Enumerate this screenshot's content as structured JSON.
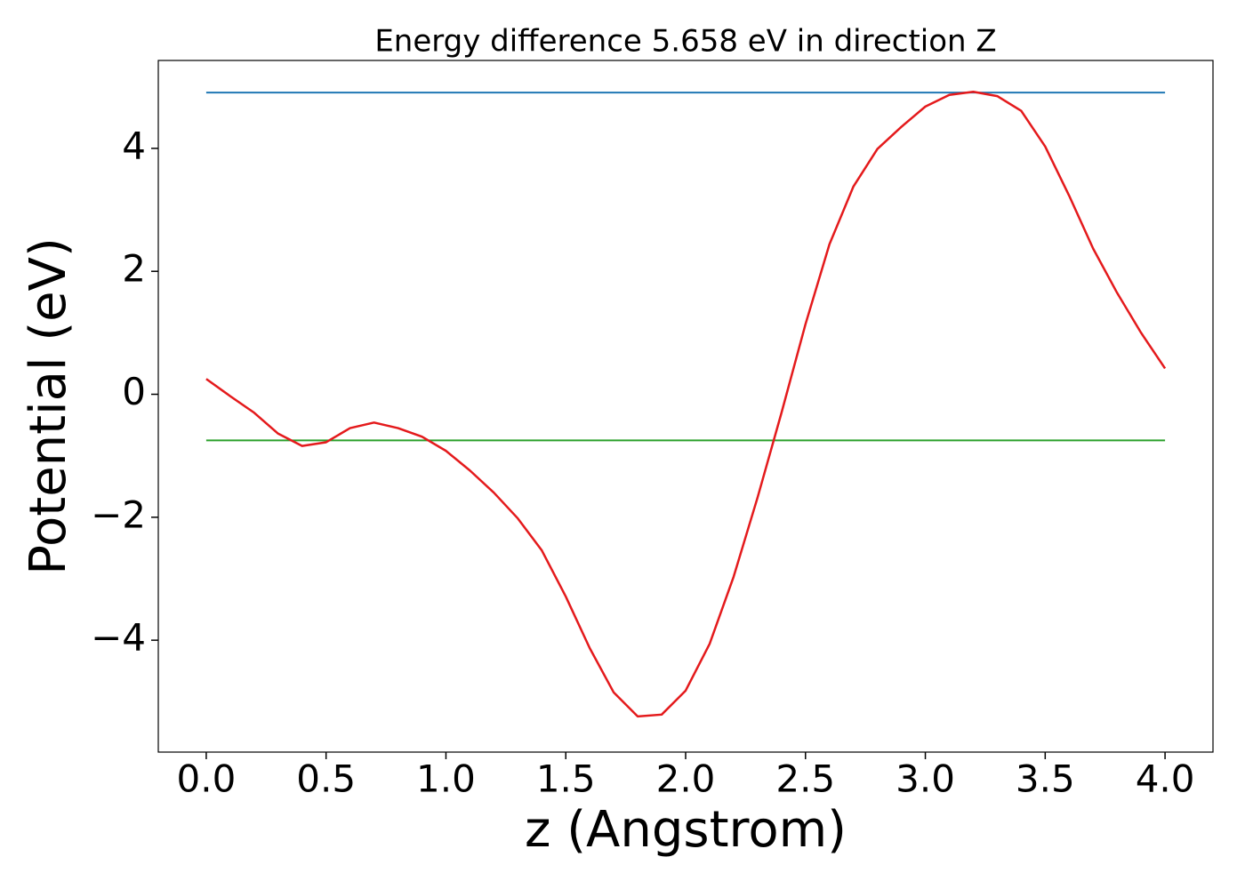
{
  "chart_data": {
    "type": "line",
    "title": "Energy difference 5.658 eV in direction Z",
    "xlabel": "z (Angstrom)",
    "ylabel": "Potential (eV)",
    "xlim": [
      -0.2,
      4.2
    ],
    "ylim": [
      -5.82,
      5.43
    ],
    "xticks": [
      {
        "value": 0,
        "label": "0.0"
      },
      {
        "value": 0.5,
        "label": "0.5"
      },
      {
        "value": 1,
        "label": "1.0"
      },
      {
        "value": 1.5,
        "label": "1.5"
      },
      {
        "value": 2,
        "label": "2.0"
      },
      {
        "value": 2.5,
        "label": "2.5"
      },
      {
        "value": 3,
        "label": "3.0"
      },
      {
        "value": 3.5,
        "label": "3.5"
      },
      {
        "value": 4,
        "label": "4.0"
      }
    ],
    "yticks": [
      {
        "value": -4,
        "label": "−4"
      },
      {
        "value": -2,
        "label": "−2"
      },
      0,
      2,
      4
    ],
    "series": [
      {
        "color": "#1f77b4",
        "x": [
          0,
          4
        ],
        "values": [
          4.908,
          4.908
        ]
      },
      {
        "color": "#2ca02c",
        "x": [
          0,
          4
        ],
        "values": [
          -0.75,
          -0.75
        ]
      },
      {
        "color": "#e41a1c",
        "x": [
          0,
          0.1,
          0.2,
          0.3,
          0.4,
          0.5,
          0.6,
          0.7,
          0.8,
          0.9,
          1.0,
          1.1,
          1.2,
          1.3,
          1.4,
          1.5,
          1.6,
          1.7,
          1.8,
          1.9,
          2.0,
          2.1,
          2.2,
          2.3,
          2.4,
          2.5,
          2.6,
          2.7,
          2.8,
          2.9,
          3.0,
          3.1,
          3.2,
          3.3,
          3.4,
          3.5,
          3.6,
          3.7,
          3.8,
          3.9,
          4.0
        ],
        "values": [
          0.25,
          -0.03,
          -0.3,
          -0.64,
          -0.84,
          -0.78,
          -0.55,
          -0.46,
          -0.55,
          -0.69,
          -0.92,
          -1.24,
          -1.6,
          -2.02,
          -2.54,
          -3.29,
          -4.13,
          -4.85,
          -5.24,
          -5.21,
          -4.82,
          -4.06,
          -2.97,
          -1.68,
          -0.3,
          1.14,
          2.44,
          3.38,
          3.99,
          4.35,
          4.68,
          4.87,
          4.92,
          4.85,
          4.61,
          4.03,
          3.23,
          2.37,
          1.65,
          1.0,
          0.42
        ]
      }
    ]
  }
}
